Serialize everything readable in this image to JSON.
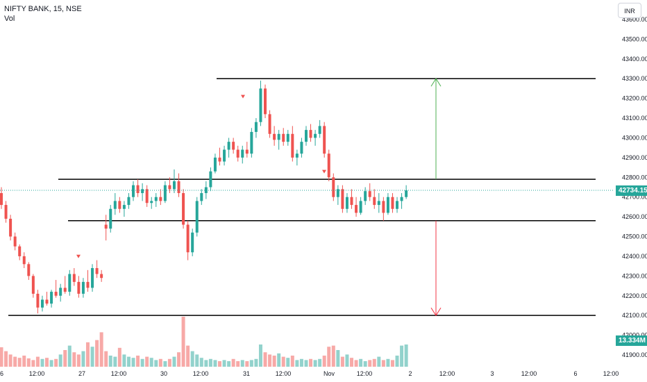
{
  "header": {
    "title": "NIFTY BANK, 15, NSE",
    "volume_label": "Vol"
  },
  "currency_button": "INR",
  "price_badge": "42734.15",
  "volume_badge": "13.334M",
  "colors": {
    "up": "#26a69a",
    "down": "#ef5350",
    "level_line": "#000000",
    "up_arrow": "#4caf50",
    "down_arrow": "#f23645",
    "last_price_line": "#26a69a"
  },
  "chart_data": {
    "type": "candlestick",
    "symbol": "NIFTY BANK",
    "interval": "15",
    "exchange": "NSE",
    "y_axis": {
      "ticks": [
        "41900.00",
        "42000.00",
        "42100.00",
        "42200.00",
        "42300.00",
        "42400.00",
        "42500.00",
        "42600.00",
        "42700.00",
        "42800.00",
        "42900.00",
        "43000.00",
        "43100.00",
        "43200.00",
        "43300.00",
        "43400.00",
        "43500.00",
        "43600.00"
      ],
      "tick_values": [
        41900,
        42000,
        42100,
        42200,
        42300,
        42400,
        42500,
        42600,
        42700,
        42800,
        42900,
        43000,
        43100,
        43200,
        43300,
        43400,
        43500,
        43600
      ],
      "range": [
        41880,
        43610
      ]
    },
    "x_axis": {
      "ticks": [
        "6",
        "12:00",
        "27",
        "12:00",
        "30",
        "12:00",
        "31",
        "12:00",
        "Nov",
        "12:00",
        "2",
        "12:00",
        "3",
        "12:00",
        "6",
        "12:00"
      ]
    },
    "horizontal_levels": [
      43300,
      42790,
      42580,
      42100
    ],
    "last_price": 42734.15,
    "last_volume": "13.334M",
    "projection_arrows": [
      {
        "direction": "up",
        "from": 42790,
        "to": 43300
      },
      {
        "direction": "down",
        "from": 42580,
        "to": 42100
      }
    ],
    "sell_markers": [
      43200,
      42390,
      42820
    ],
    "candles": [
      [
        42720,
        42750,
        42640,
        42660
      ],
      [
        42660,
        42680,
        42570,
        42590
      ],
      [
        42590,
        42610,
        42480,
        42500
      ],
      [
        42500,
        42520,
        42430,
        42450
      ],
      [
        42450,
        42460,
        42380,
        42400
      ],
      [
        42400,
        42420,
        42340,
        42360
      ],
      [
        42360,
        42370,
        42280,
        42300
      ],
      [
        42300,
        42310,
        42190,
        42210
      ],
      [
        42210,
        42230,
        42110,
        42140
      ],
      [
        42140,
        42200,
        42120,
        42180
      ],
      [
        42180,
        42220,
        42150,
        42160
      ],
      [
        42160,
        42230,
        42140,
        42220
      ],
      [
        42220,
        42280,
        42190,
        42200
      ],
      [
        42200,
        42260,
        42170,
        42240
      ],
      [
        42240,
        42300,
        42210,
        42220
      ],
      [
        42220,
        42330,
        42200,
        42310
      ],
      [
        42310,
        42340,
        42250,
        42270
      ],
      [
        42270,
        42300,
        42190,
        42210
      ],
      [
        42210,
        42290,
        42190,
        42270
      ],
      [
        42270,
        42330,
        42220,
        42240
      ],
      [
        42240,
        42360,
        42220,
        42340
      ],
      [
        42340,
        42380,
        42290,
        42310
      ],
      [
        42310,
        42330,
        42270,
        42290
      ],
      [
        42560,
        42610,
        42480,
        42540
      ],
      [
        42540,
        42660,
        42520,
        42640
      ],
      [
        42640,
        42720,
        42610,
        42680
      ],
      [
        42680,
        42700,
        42620,
        42640
      ],
      [
        42640,
        42680,
        42600,
        42660
      ],
      [
        42660,
        42720,
        42640,
        42700
      ],
      [
        42700,
        42780,
        42680,
        42760
      ],
      [
        42760,
        42790,
        42700,
        42720
      ],
      [
        42720,
        42770,
        42680,
        42740
      ],
      [
        42740,
        42760,
        42650,
        42670
      ],
      [
        42670,
        42700,
        42640,
        42680
      ],
      [
        42680,
        42720,
        42650,
        42700
      ],
      [
        42700,
        42740,
        42660,
        42680
      ],
      [
        42680,
        42780,
        42670,
        42760
      ],
      [
        42760,
        42800,
        42720,
        42740
      ],
      [
        42740,
        42840,
        42720,
        42780
      ],
      [
        42780,
        42820,
        42700,
        42720
      ],
      [
        42720,
        42740,
        42540,
        42560
      ],
      [
        42560,
        42580,
        42380,
        42420
      ],
      [
        42420,
        42540,
        42400,
        42520
      ],
      [
        42520,
        42700,
        42500,
        42680
      ],
      [
        42680,
        42740,
        42660,
        42720
      ],
      [
        42720,
        42780,
        42690,
        42750
      ],
      [
        42750,
        42850,
        42730,
        42830
      ],
      [
        42830,
        42920,
        42820,
        42900
      ],
      [
        42900,
        42950,
        42860,
        42880
      ],
      [
        42880,
        42960,
        42860,
        42940
      ],
      [
        42940,
        43000,
        42900,
        42980
      ],
      [
        42980,
        43000,
        42920,
        42940
      ],
      [
        42940,
        42960,
        42880,
        42900
      ],
      [
        42900,
        42960,
        42870,
        42940
      ],
      [
        42940,
        42980,
        42900,
        42920
      ],
      [
        42920,
        43050,
        42900,
        43030
      ],
      [
        43030,
        43100,
        43000,
        43080
      ],
      [
        43080,
        43290,
        43060,
        43250
      ],
      [
        43250,
        43270,
        43100,
        43120
      ],
      [
        43120,
        43140,
        43000,
        43020
      ],
      [
        43020,
        43060,
        42960,
        42990
      ],
      [
        42990,
        43040,
        42940,
        43020
      ],
      [
        43020,
        43050,
        42960,
        42980
      ],
      [
        42980,
        43040,
        42960,
        43020
      ],
      [
        43020,
        43060,
        42880,
        42900
      ],
      [
        42900,
        42940,
        42860,
        42920
      ],
      [
        42920,
        43000,
        42900,
        42980
      ],
      [
        42980,
        43060,
        42960,
        43040
      ],
      [
        43040,
        43070,
        42980,
        43000
      ],
      [
        43000,
        43040,
        42960,
        43020
      ],
      [
        43020,
        43090,
        43000,
        43060
      ],
      [
        43060,
        43080,
        42900,
        42920
      ],
      [
        42920,
        42940,
        42780,
        42800
      ],
      [
        42800,
        42820,
        42680,
        42700
      ],
      [
        42700,
        42760,
        42660,
        42740
      ],
      [
        42740,
        42760,
        42620,
        42640
      ],
      [
        42640,
        42720,
        42620,
        42700
      ],
      [
        42700,
        42740,
        42640,
        42660
      ],
      [
        42660,
        42700,
        42600,
        42620
      ],
      [
        42620,
        42700,
        42610,
        42680
      ],
      [
        42680,
        42750,
        42660,
        42730
      ],
      [
        42730,
        42770,
        42680,
        42700
      ],
      [
        42700,
        42740,
        42640,
        42660
      ],
      [
        42660,
        42720,
        42620,
        42680
      ],
      [
        42680,
        42700,
        42580,
        42620
      ],
      [
        42620,
        42720,
        42610,
        42700
      ],
      [
        42700,
        42720,
        42620,
        42640
      ],
      [
        42640,
        42700,
        42620,
        42680
      ],
      [
        42680,
        42720,
        42640,
        42700
      ],
      [
        42700,
        42760,
        42690,
        42734
      ]
    ],
    "volumes": [
      0.35,
      0.28,
      0.22,
      0.18,
      0.16,
      0.2,
      0.15,
      0.12,
      0.18,
      0.14,
      0.16,
      0.12,
      0.14,
      0.22,
      0.3,
      0.38,
      0.26,
      0.22,
      0.28,
      0.44,
      0.36,
      0.48,
      0.62,
      0.28,
      0.2,
      0.18,
      0.34,
      0.22,
      0.18,
      0.16,
      0.2,
      0.14,
      0.18,
      0.16,
      0.12,
      0.14,
      0.1,
      0.14,
      0.18,
      0.26,
      0.9,
      0.38,
      0.28,
      0.22,
      0.16,
      0.12,
      0.14,
      0.12,
      0.1,
      0.12,
      0.1,
      0.14,
      0.1,
      0.12,
      0.1,
      0.12,
      0.14,
      0.4,
      0.26,
      0.22,
      0.2,
      0.24,
      0.18,
      0.16,
      0.2,
      0.12,
      0.14,
      0.12,
      0.14,
      0.12,
      0.14,
      0.2,
      0.36,
      0.38,
      0.3,
      0.18,
      0.22,
      0.16,
      0.12,
      0.14,
      0.1,
      0.12,
      0.14,
      0.18,
      0.12,
      0.14,
      0.12,
      0.2,
      0.38,
      0.4
    ]
  }
}
